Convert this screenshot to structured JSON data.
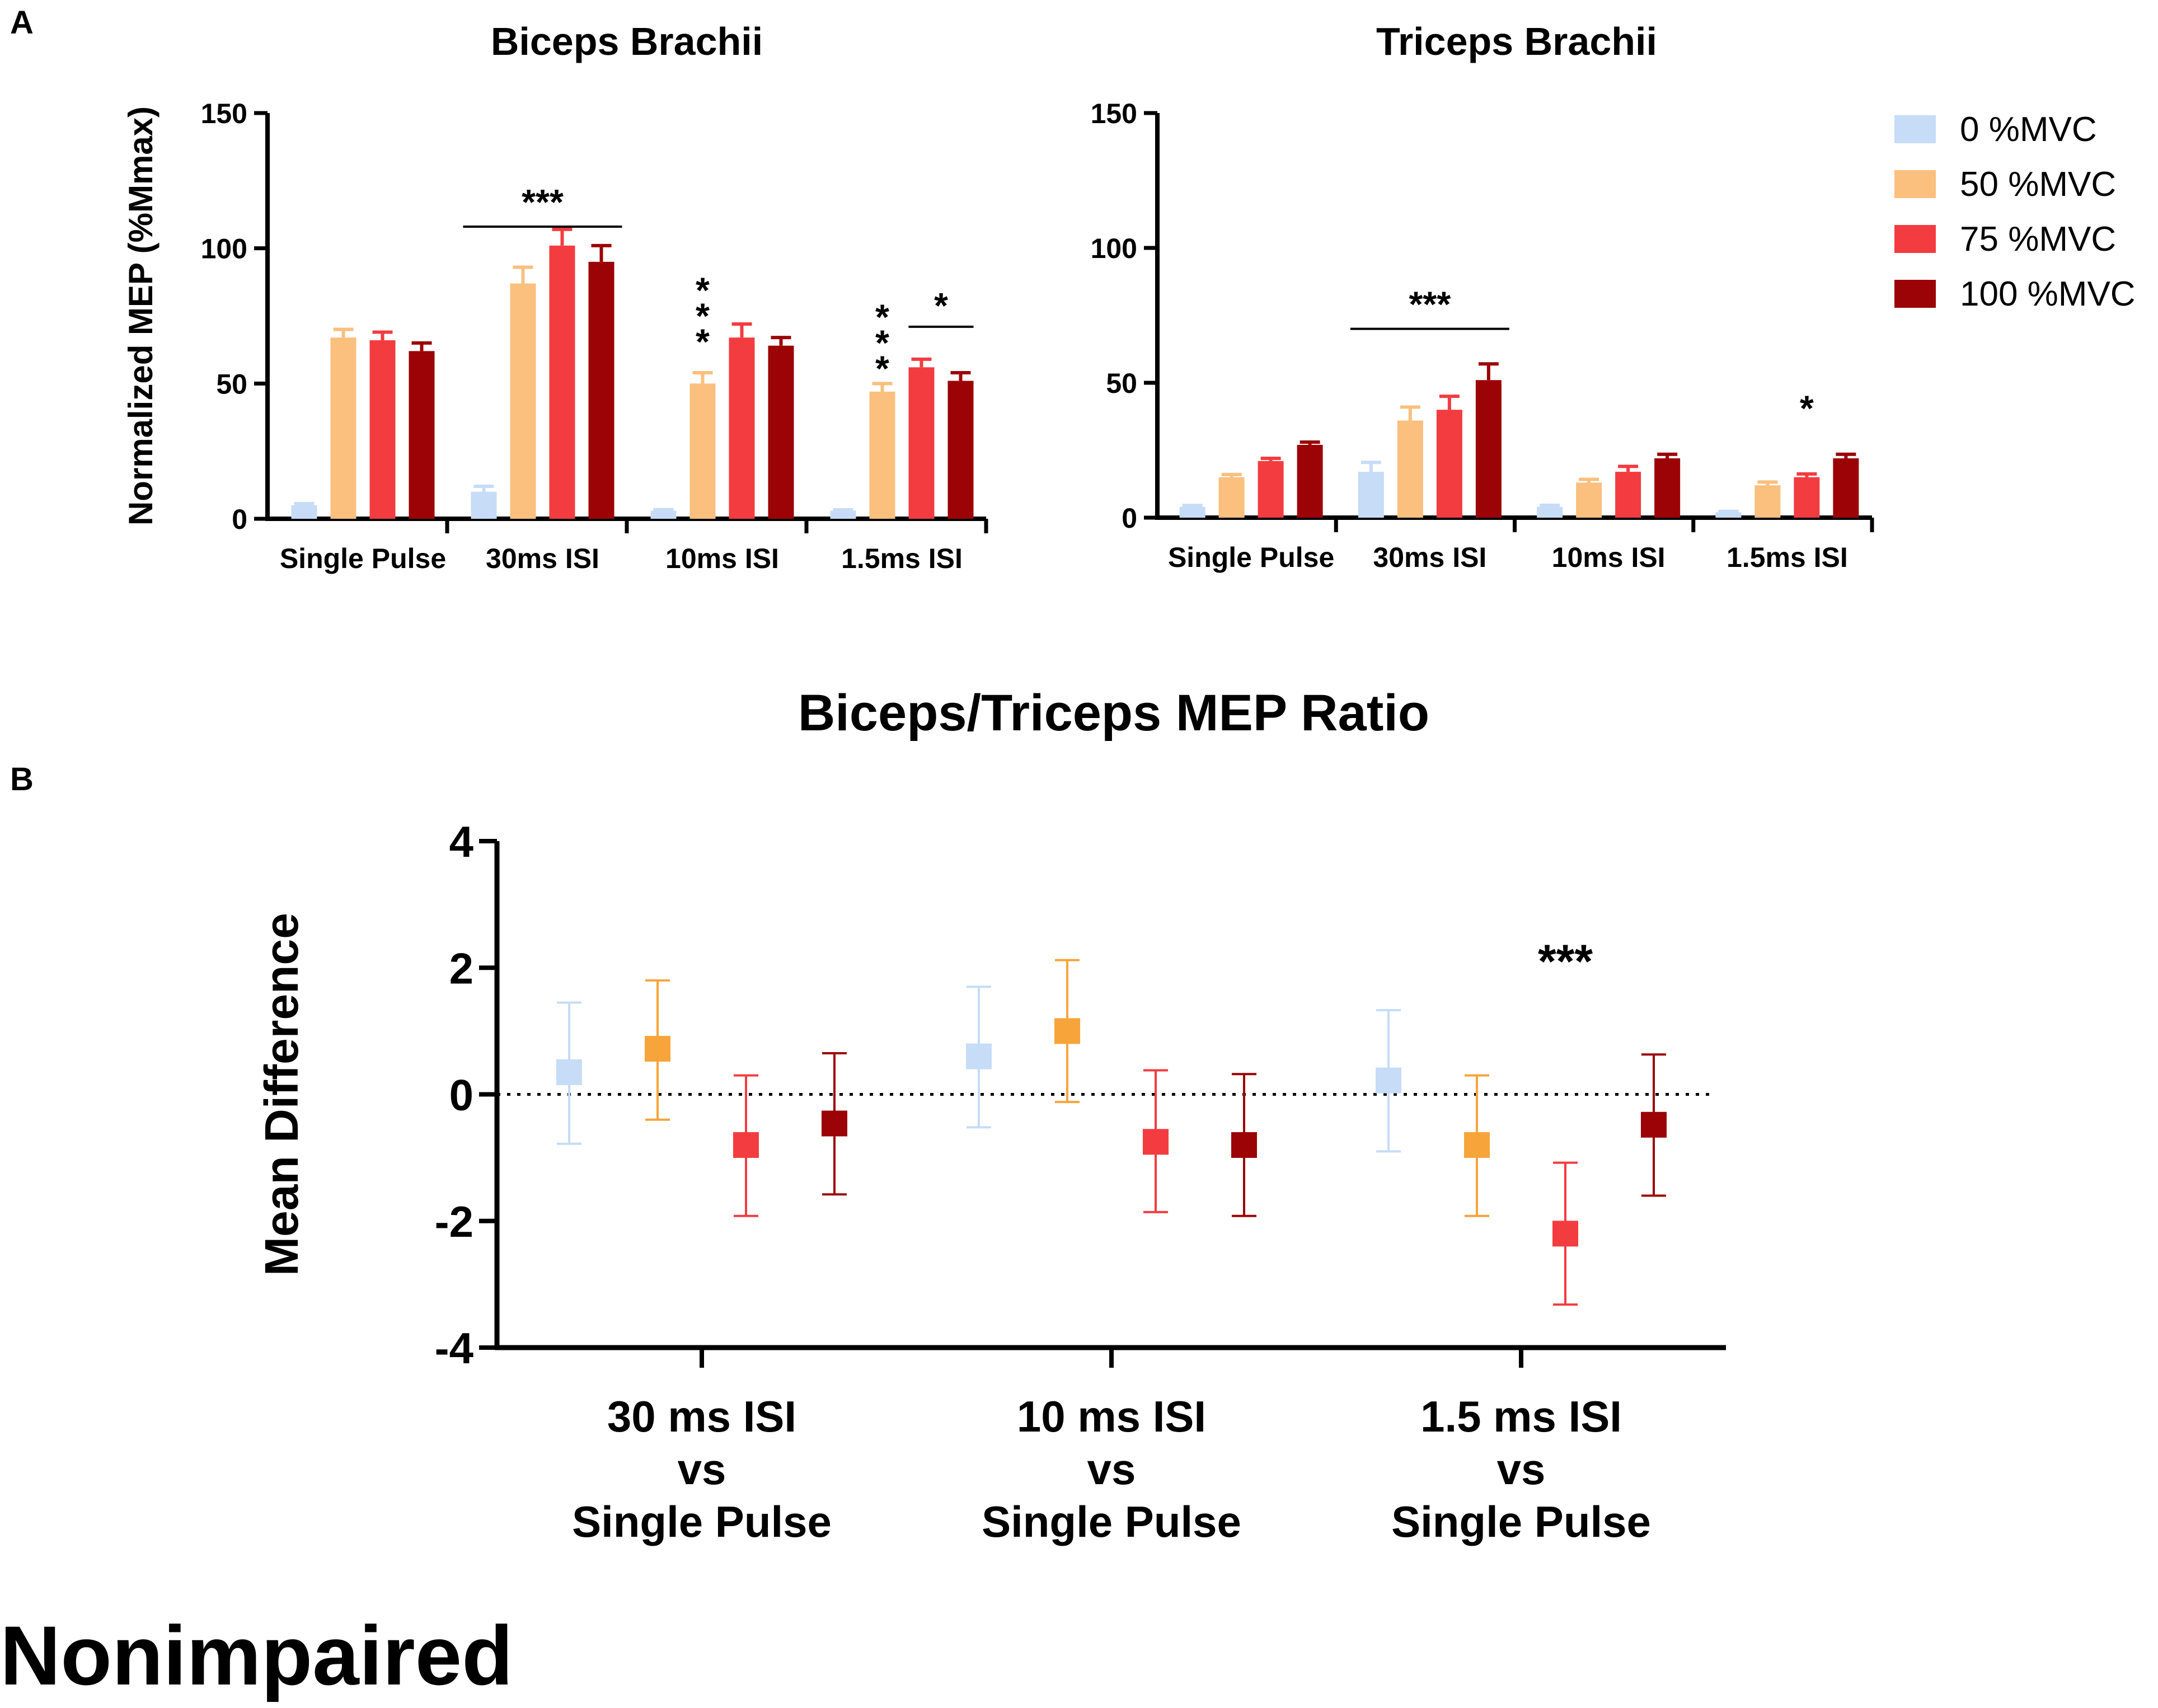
{
  "panel_labels": {
    "a": "A",
    "b": "B"
  },
  "figure_footer": "Nonimpaired",
  "chart_data": [
    {
      "type": "bar",
      "title": "Biceps Brachii",
      "ylabel": "Normalized MEP (%Mmax)",
      "xlabel": "",
      "ylim": [
        0,
        150
      ],
      "yticks": [
        "0",
        "50",
        "100",
        "150"
      ],
      "categories": [
        "Single Pulse",
        "30ms ISI",
        "10ms ISI",
        "1.5ms ISI"
      ],
      "series": [
        {
          "name": "0 %MVC",
          "color": "#c6dcf7",
          "values": [
            5,
            10,
            3,
            3
          ],
          "errors": [
            0.6,
            2.0,
            0.4,
            0.3
          ]
        },
        {
          "name": "50 %MVC",
          "color": "#fbbf7e",
          "values": [
            67,
            87,
            50,
            47
          ],
          "errors": [
            3,
            6,
            4,
            3
          ]
        },
        {
          "name": "75 %MVC",
          "color": "#f33c40",
          "values": [
            66,
            101,
            67,
            56
          ],
          "errors": [
            3,
            6,
            5,
            3
          ]
        },
        {
          "name": "100 %MVC",
          "color": "#9b0306",
          "values": [
            62,
            95,
            64,
            51
          ],
          "errors": [
            3,
            6,
            3,
            3
          ]
        }
      ],
      "annotations": [
        {
          "text": "***",
          "category": "30ms ISI",
          "y": 120,
          "bracket": "all"
        },
        {
          "text": "*\n*\n*",
          "category": "10ms ISI",
          "y": 80,
          "series": "50 %MVC"
        },
        {
          "text": "*\n*\n*",
          "category": "1.5ms ISI",
          "y": 70,
          "series": "50 %MVC"
        },
        {
          "text": "*",
          "category": "1.5ms ISI",
          "y": 77,
          "bracket": "75-100"
        }
      ]
    },
    {
      "type": "bar",
      "title": "Triceps Brachii",
      "ylabel": "",
      "xlabel": "",
      "ylim": [
        0,
        150
      ],
      "yticks": [
        "0",
        "50",
        "100",
        "150"
      ],
      "categories": [
        "Single Pulse",
        "30ms ISI",
        "10ms ISI",
        "1.5ms ISI"
      ],
      "series": [
        {
          "name": "0 %MVC",
          "color": "#c6dcf7",
          "values": [
            4,
            17,
            4,
            2
          ],
          "errors": [
            0.5,
            3.5,
            0.6,
            0.3
          ]
        },
        {
          "name": "50 %MVC",
          "color": "#fbbf7e",
          "values": [
            15,
            36,
            13,
            12
          ],
          "errors": [
            1,
            5,
            1.2,
            1.2
          ]
        },
        {
          "name": "75 %MVC",
          "color": "#f33c40",
          "values": [
            21,
            40,
            17,
            15
          ],
          "errors": [
            1,
            5,
            2,
            1.2
          ]
        },
        {
          "name": "100 %MVC",
          "color": "#9b0306",
          "values": [
            27,
            51,
            22,
            22
          ],
          "errors": [
            1,
            6,
            1.5,
            1.5
          ]
        }
      ],
      "legend": [
        "0 %MVC",
        "50 %MVC",
        "75 %MVC",
        "100 %MVC"
      ],
      "legend_position": "right",
      "annotations": [
        {
          "text": "***",
          "category": "30ms ISI",
          "y": 82,
          "bracket": "all"
        },
        {
          "text": "*",
          "category": "1.5ms ISI",
          "y": 36,
          "series": "75 %MVC"
        }
      ]
    },
    {
      "type": "scatter",
      "title": "Biceps/Triceps MEP Ratio",
      "ylabel": "Mean Difference",
      "xlabel": "",
      "ylim": [
        -4,
        4
      ],
      "yticks": [
        "4",
        "2",
        "0",
        "-2",
        "-4"
      ],
      "categories": [
        [
          "30 ms ISI",
          "vs",
          "Single Pulse"
        ],
        [
          "10 ms ISI",
          "vs",
          "Single Pulse"
        ],
        [
          "1.5 ms ISI",
          "vs",
          "Single Pulse"
        ]
      ],
      "reference_line": 0,
      "series": [
        {
          "name": "0 %MVC",
          "color": "#c6dcf7",
          "values": [
            0.35,
            0.6,
            0.22
          ],
          "lower": [
            -0.78,
            -0.52,
            -0.9
          ],
          "upper": [
            1.45,
            1.7,
            1.33
          ]
        },
        {
          "name": "50 %MVC",
          "color": "#f7a43b",
          "values": [
            0.72,
            1.0,
            -0.8
          ],
          "lower": [
            -0.4,
            -0.12,
            -1.92
          ],
          "upper": [
            1.8,
            2.12,
            0.3
          ]
        },
        {
          "name": "75 %MVC",
          "color": "#f33c40",
          "values": [
            -0.8,
            -0.75,
            -2.2
          ],
          "lower": [
            -1.92,
            -1.86,
            -3.32
          ],
          "upper": [
            0.3,
            0.38,
            -1.08
          ]
        },
        {
          "name": "100 %MVC",
          "color": "#9b0306",
          "values": [
            -0.46,
            -0.8,
            -0.48
          ],
          "lower": [
            -1.58,
            -1.92,
            -1.6
          ],
          "upper": [
            0.65,
            0.32,
            0.63
          ]
        }
      ],
      "annotations": [
        {
          "text": "***",
          "category": "1.5 ms ISI vs Single Pulse",
          "y": 2.2,
          "series": "75 %MVC"
        }
      ]
    }
  ]
}
